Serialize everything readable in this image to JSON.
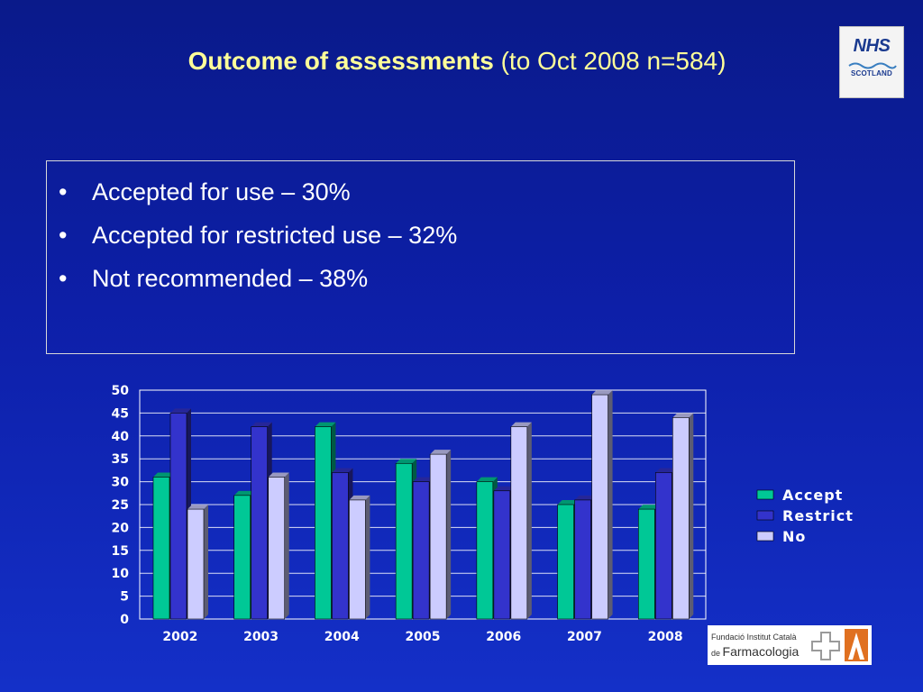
{
  "slide": {
    "title_bold": "Outcome of assessments",
    "title_rest": " (to Oct 2008 n=584)",
    "bullet_marker": "•",
    "bullets": [
      "Accepted for use – 30%",
      "Accepted for restricted use – 32%",
      "Not recommended – 38%"
    ]
  },
  "logos": {
    "nhs": {
      "text": "NHS",
      "subtext": "SCOTLAND"
    },
    "fic": {
      "line1": "Fundació Institut Català",
      "line2_prefix": "de ",
      "line2_main": "Farmacologia"
    }
  },
  "chart_data": {
    "type": "bar",
    "title": "",
    "xlabel": "",
    "ylabel": "",
    "categories": [
      "2002",
      "2003",
      "2004",
      "2005",
      "2006",
      "2007",
      "2008"
    ],
    "ylim": [
      0,
      50
    ],
    "yticks": [
      0,
      5,
      10,
      15,
      20,
      25,
      30,
      35,
      40,
      45,
      50
    ],
    "grid": true,
    "legend_position": "right",
    "series": [
      {
        "name": "Accept",
        "color": "#00c896",
        "values": [
          31,
          27,
          42,
          34,
          30,
          25,
          24
        ]
      },
      {
        "name": "Restrict",
        "color": "#3333cc",
        "values": [
          45,
          42,
          32,
          30,
          28,
          26,
          32
        ]
      },
      {
        "name": "No",
        "color": "#ccccff",
        "values": [
          24,
          31,
          26,
          36,
          42,
          49,
          44
        ]
      }
    ]
  }
}
